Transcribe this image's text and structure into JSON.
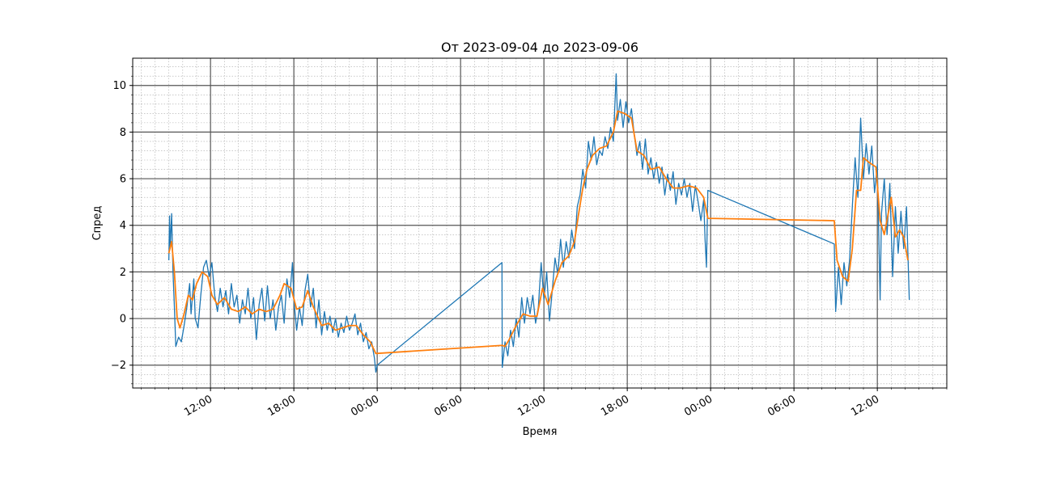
{
  "chart_data": {
    "type": "line",
    "title": "От 2023-09-04 до 2023-09-06",
    "x_label": "Время",
    "y_label": "Спред",
    "xlim": [
      6.4,
      65.0
    ],
    "xticks": [
      {
        "value": 12,
        "label": "12:00"
      },
      {
        "value": 18,
        "label": "18:00"
      },
      {
        "value": 24,
        "label": "00:00"
      },
      {
        "value": 30,
        "label": "06:00"
      },
      {
        "value": 36,
        "label": "12:00"
      },
      {
        "value": 42,
        "label": "18:00"
      },
      {
        "value": 48,
        "label": "00:00"
      },
      {
        "value": 54,
        "label": "06:00"
      },
      {
        "value": 60,
        "label": "12:00"
      }
    ],
    "ylim": [
      -2.98,
      11.17
    ],
    "yticks": [
      {
        "value": -2,
        "label": "−2"
      },
      0,
      2,
      4,
      6,
      8,
      10
    ],
    "grid": true,
    "minor_grid": {
      "x": 1,
      "y": 0.4
    },
    "series": [
      {
        "color": "#1f77b4",
        "x": [
          9.0,
          9.05,
          9.1,
          9.2,
          9.3,
          9.4,
          9.5,
          9.7,
          9.9,
          10.1,
          10.3,
          10.5,
          10.6,
          10.8,
          10.9,
          11.1,
          11.3,
          11.5,
          11.7,
          11.9,
          12.1,
          12.3,
          12.5,
          12.7,
          12.9,
          13.1,
          13.3,
          13.5,
          13.7,
          13.9,
          14.1,
          14.3,
          14.5,
          14.7,
          14.9,
          15.1,
          15.3,
          15.5,
          15.7,
          15.9,
          16.1,
          16.3,
          16.5,
          16.7,
          16.9,
          17.1,
          17.3,
          17.5,
          17.7,
          17.9,
          18.0,
          18.2,
          18.4,
          18.6,
          18.8,
          19.0,
          19.2,
          19.4,
          19.6,
          19.8,
          20.0,
          20.2,
          20.4,
          20.6,
          20.8,
          21.0,
          21.2,
          21.4,
          21.6,
          21.8,
          22.0,
          22.2,
          22.4,
          22.6,
          22.8,
          23.0,
          23.2,
          23.4,
          23.6,
          23.8,
          23.9,
          24.0,
          32.98,
          33.0,
          33.2,
          33.4,
          33.6,
          33.8,
          34.0,
          34.2,
          34.4,
          34.6,
          34.8,
          35.0,
          35.2,
          35.4,
          35.6,
          35.8,
          36.0,
          36.2,
          36.4,
          36.6,
          36.8,
          37.0,
          37.2,
          37.4,
          37.6,
          37.8,
          38.0,
          38.2,
          38.4,
          38.6,
          38.8,
          39.0,
          39.2,
          39.4,
          39.6,
          39.8,
          40.0,
          40.2,
          40.4,
          40.6,
          40.8,
          41.0,
          41.2,
          41.3,
          41.5,
          41.7,
          41.9,
          42.1,
          42.3,
          42.5,
          42.7,
          42.9,
          43.1,
          43.3,
          43.5,
          43.7,
          43.9,
          44.1,
          44.3,
          44.5,
          44.7,
          44.9,
          45.1,
          45.3,
          45.5,
          45.7,
          45.9,
          46.1,
          46.3,
          46.5,
          46.7,
          46.9,
          47.1,
          47.3,
          47.5,
          47.6,
          47.7,
          47.8,
          56.9,
          57.0,
          57.2,
          57.4,
          57.6,
          57.8,
          58.0,
          58.2,
          58.4,
          58.6,
          58.8,
          59.0,
          59.2,
          59.4,
          59.6,
          59.8,
          60.0,
          60.2,
          60.3,
          60.5,
          60.7,
          60.9,
          61.1,
          61.3,
          61.5,
          61.7,
          61.9,
          62.1,
          62.3
        ],
        "values": [
          2.5,
          4.4,
          3.0,
          4.5,
          2.0,
          0.5,
          -1.2,
          -0.8,
          -1.0,
          -0.3,
          0.5,
          1.5,
          0.2,
          1.7,
          0.0,
          -0.4,
          1.0,
          2.2,
          2.5,
          1.8,
          2.4,
          1.0,
          0.3,
          1.3,
          0.5,
          1.2,
          0.2,
          1.5,
          0.5,
          1.0,
          -0.2,
          0.8,
          0.2,
          1.3,
          0.0,
          0.9,
          -0.9,
          0.6,
          1.3,
          -0.1,
          1.4,
          0.0,
          0.8,
          -0.5,
          0.5,
          1.0,
          -0.2,
          1.7,
          0.9,
          2.4,
          0.8,
          -0.5,
          0.5,
          -0.3,
          1.2,
          1.9,
          0.5,
          1.3,
          -0.4,
          0.8,
          -0.7,
          0.3,
          -0.5,
          0.1,
          -0.6,
          0.0,
          -0.8,
          -0.2,
          -0.6,
          0.1,
          -0.5,
          -0.2,
          0.2,
          -0.7,
          -0.2,
          -1.0,
          -0.6,
          -1.3,
          -1.0,
          -1.7,
          -2.3,
          -2.0,
          2.4,
          -2.1,
          -1.0,
          -1.6,
          -0.5,
          -1.2,
          0.0,
          -0.8,
          0.9,
          -0.2,
          0.9,
          0.2,
          1.0,
          -0.2,
          0.5,
          2.4,
          0.8,
          2.0,
          -0.1,
          1.2,
          2.6,
          1.9,
          3.4,
          2.2,
          3.3,
          2.6,
          3.8,
          3.0,
          4.8,
          5.3,
          6.4,
          5.6,
          7.6,
          6.8,
          7.8,
          6.6,
          7.2,
          7.0,
          7.8,
          7.3,
          8.2,
          7.6,
          10.5,
          8.5,
          9.4,
          8.2,
          9.3,
          8.4,
          9.0,
          7.9,
          7.0,
          7.6,
          6.4,
          7.7,
          6.2,
          6.9,
          6.0,
          6.7,
          5.8,
          6.5,
          5.3,
          6.2,
          5.5,
          6.3,
          4.9,
          5.8,
          5.3,
          6.0,
          5.2,
          5.8,
          4.6,
          5.7,
          5.0,
          4.2,
          5.1,
          3.4,
          2.2,
          5.5,
          3.2,
          0.3,
          2.2,
          0.6,
          2.4,
          1.4,
          2.5,
          4.8,
          6.9,
          5.2,
          8.6,
          6.0,
          7.5,
          6.2,
          7.4,
          5.4,
          6.6,
          0.8,
          4.5,
          6.0,
          3.6,
          5.8,
          1.8,
          4.8,
          2.8,
          4.6,
          3.0,
          4.8,
          0.8
        ]
      },
      {
        "color": "#ff7f0e",
        "x": [
          9.0,
          9.2,
          9.4,
          9.6,
          9.8,
          10.1,
          10.4,
          10.7,
          11.0,
          11.4,
          11.8,
          12.1,
          12.5,
          13.0,
          13.5,
          14.0,
          14.5,
          15.0,
          15.5,
          16.0,
          16.5,
          17.0,
          17.3,
          17.8,
          18.2,
          18.6,
          19.0,
          19.4,
          20.0,
          20.5,
          21.0,
          21.5,
          22.0,
          22.5,
          23.0,
          23.5,
          23.9,
          33.0,
          33.2,
          33.5,
          34.0,
          34.5,
          35.0,
          35.5,
          35.9,
          36.3,
          36.8,
          37.3,
          37.8,
          38.2,
          38.5,
          38.8,
          39.1,
          39.5,
          40.0,
          40.5,
          41.0,
          41.3,
          41.8,
          42.3,
          42.7,
          43.2,
          43.7,
          44.3,
          44.8,
          45.3,
          45.8,
          46.4,
          47.0,
          47.5,
          47.8,
          56.9,
          57.1,
          57.5,
          57.9,
          58.2,
          58.5,
          58.8,
          59.0,
          59.4,
          59.9,
          60.2,
          60.5,
          61.0,
          61.3,
          61.6,
          61.9,
          62.2
        ],
        "values": [
          2.8,
          3.3,
          2.0,
          0.0,
          -0.4,
          0.2,
          1.0,
          0.8,
          1.5,
          2.0,
          1.8,
          1.0,
          0.6,
          0.9,
          0.4,
          0.3,
          0.5,
          0.2,
          0.4,
          0.3,
          0.4,
          1.0,
          1.5,
          1.3,
          0.4,
          0.5,
          1.2,
          0.5,
          -0.3,
          -0.2,
          -0.5,
          -0.4,
          -0.3,
          -0.3,
          -0.7,
          -1.0,
          -1.5,
          -1.15,
          -1.2,
          -0.9,
          -0.3,
          0.2,
          0.1,
          0.1,
          1.3,
          0.6,
          1.6,
          2.4,
          2.7,
          3.3,
          4.5,
          5.6,
          6.4,
          7.0,
          7.3,
          7.4,
          8.0,
          8.9,
          8.8,
          8.6,
          7.2,
          7.0,
          6.4,
          6.5,
          6.0,
          5.6,
          5.6,
          5.7,
          5.6,
          5.2,
          4.3,
          4.2,
          2.5,
          1.8,
          1.6,
          3.0,
          5.5,
          5.5,
          6.9,
          6.7,
          6.5,
          4.2,
          3.6,
          5.2,
          3.5,
          3.8,
          3.5,
          2.5
        ]
      }
    ]
  }
}
